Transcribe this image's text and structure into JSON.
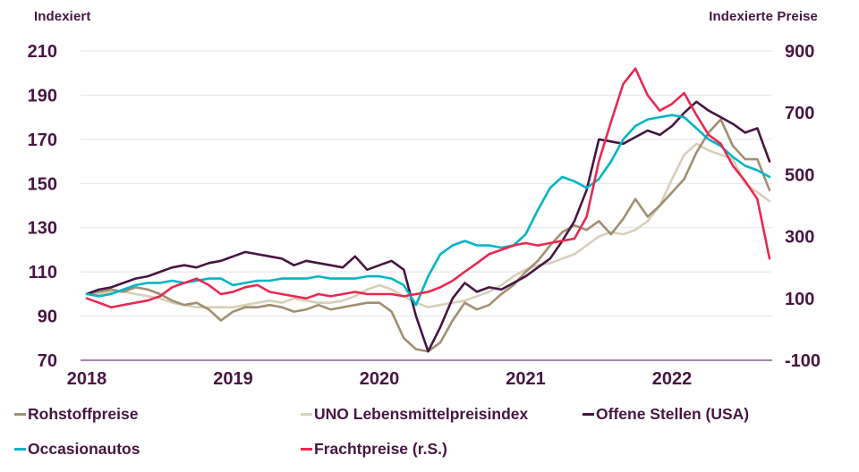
{
  "colors": {
    "text": "#481543",
    "grid": "#e2e2e2",
    "axis": "#a883ab",
    "background": "#ffffff"
  },
  "chart_data": {
    "type": "line",
    "frequency": "monthly",
    "x_start": "2018-01",
    "x_end": "2022-09",
    "x_tick_labels": [
      "2018",
      "2019",
      "2020",
      "2021",
      "2022"
    ],
    "left_axis": {
      "title": "Indexiert",
      "range": [
        70,
        210
      ],
      "ticks": [
        70,
        90,
        110,
        130,
        150,
        170,
        190,
        210
      ]
    },
    "right_axis": {
      "title": "Indexierte Preise",
      "range": [
        -100,
        900
      ],
      "ticks": [
        -100,
        100,
        300,
        500,
        700,
        900
      ]
    },
    "grid": "horizontal",
    "legend_position": "bottom",
    "draw_order": [
      1,
      0,
      2,
      3,
      4
    ],
    "series": [
      {
        "name": "Rohstoffpreise",
        "axis": "left",
        "color": "#a18f70",
        "values": [
          100,
          101,
          102,
          101,
          103,
          102,
          100,
          97,
          95,
          96,
          93,
          88,
          92,
          94,
          94,
          95,
          94,
          92,
          93,
          95,
          93,
          94,
          95,
          96,
          96,
          92,
          80,
          75,
          74,
          78,
          88,
          96,
          93,
          95,
          100,
          104,
          110,
          115,
          122,
          128,
          131,
          129,
          133,
          127,
          134,
          143,
          135,
          140,
          146,
          152,
          164,
          173,
          179,
          167,
          161,
          161,
          147
        ]
      },
      {
        "name": "UNO Lebensmittelpreisindex",
        "axis": "left",
        "color": "#d8cfb8",
        "values": [
          100,
          100,
          101,
          101,
          100,
          99,
          98,
          96,
          95,
          94,
          94,
          94,
          94,
          95,
          96,
          97,
          96,
          98,
          97,
          96,
          96,
          97,
          99,
          102,
          104,
          102,
          99,
          96,
          94,
          95,
          96,
          97,
          99,
          101,
          104,
          108,
          111,
          113,
          114,
          116,
          118,
          122,
          126,
          128,
          127,
          129,
          133,
          140,
          152,
          163,
          168,
          165,
          163,
          161,
          150,
          146,
          142
        ]
      },
      {
        "name": "Offene Stellen (USA)",
        "axis": "left",
        "color": "#481543",
        "values": [
          100,
          102,
          103,
          105,
          107,
          108,
          110,
          112,
          113,
          112,
          114,
          115,
          117,
          119,
          118,
          117,
          116,
          113,
          115,
          114,
          113,
          112,
          117,
          111,
          113,
          115,
          111,
          90,
          74,
          85,
          98,
          105,
          101,
          103,
          102,
          105,
          108,
          112,
          116,
          124,
          133,
          147,
          170,
          169,
          168,
          171,
          174,
          172,
          176,
          182,
          187,
          183,
          180,
          177,
          173,
          175,
          160
        ]
      },
      {
        "name": "Occasionautos",
        "axis": "left",
        "color": "#00b4c5",
        "values": [
          100,
          99,
          100,
          102,
          104,
          105,
          105,
          106,
          105,
          106,
          107,
          107,
          104,
          105,
          106,
          106,
          107,
          107,
          107,
          108,
          107,
          107,
          107,
          108,
          108,
          107,
          104,
          95,
          108,
          118,
          122,
          124,
          122,
          122,
          121,
          122,
          127,
          138,
          148,
          153,
          151,
          148,
          152,
          160,
          170,
          176,
          179,
          180,
          181,
          180,
          175,
          170,
          167,
          162,
          158,
          156,
          153
        ]
      },
      {
        "name": "Frachtpreise (r.S.)",
        "axis": "right",
        "color": "#e8294f",
        "values": [
          100,
          86,
          71,
          79,
          86,
          93,
          107,
          136,
          150,
          164,
          143,
          114,
          121,
          136,
          143,
          121,
          114,
          107,
          100,
          114,
          107,
          114,
          121,
          114,
          114,
          114,
          107,
          114,
          121,
          136,
          157,
          186,
          214,
          243,
          257,
          271,
          279,
          271,
          279,
          286,
          293,
          364,
          543,
          671,
          793,
          843,
          757,
          707,
          729,
          764,
          693,
          629,
          600,
          529,
          479,
          421,
          229
        ]
      }
    ]
  }
}
